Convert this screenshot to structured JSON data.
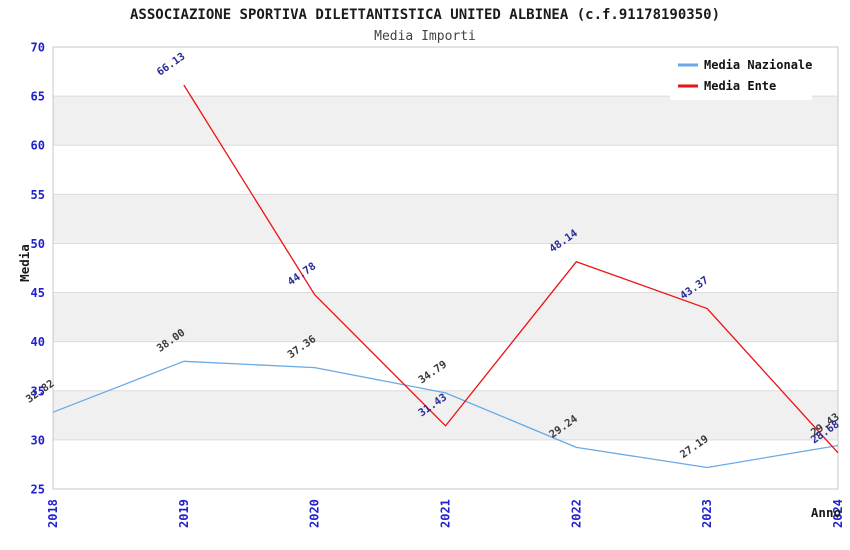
{
  "chart_data": {
    "type": "line",
    "title": "ASSOCIAZIONE SPORTIVA DILETTANTISTICA UNITED ALBINEA (c.f.91178190350)",
    "subtitle": "Media Importi",
    "xlabel": "Anno",
    "ylabel": "Media",
    "x": [
      2018,
      2019,
      2020,
      2021,
      2022,
      2023,
      2024
    ],
    "xticks": [
      "2018",
      "2019",
      "2020",
      "2021",
      "2022",
      "2023",
      "2024"
    ],
    "ylim": [
      25,
      70
    ],
    "yticks": [
      25,
      30,
      35,
      40,
      45,
      50,
      55,
      60,
      65,
      70
    ],
    "grid": "horizontal",
    "background_bands": true,
    "legend_position": "top-right",
    "series": [
      {
        "name": "Media Nazionale",
        "color": "#6aaae6",
        "label_color": "#3c3c3c",
        "values": [
          32.82,
          38.0,
          37.36,
          34.79,
          29.24,
          27.19,
          29.43
        ]
      },
      {
        "name": "Media Ente",
        "color": "#ee1111",
        "label_color": "#2b2b96",
        "values": [
          null,
          66.13,
          44.78,
          31.43,
          48.14,
          43.37,
          28.68
        ]
      }
    ],
    "colors": {
      "band_gray": "#f0f0f0",
      "gridline": "#dcdcdc",
      "plot_border": "#c8c8c8",
      "tick_label_blue": "#2222cc"
    }
  }
}
